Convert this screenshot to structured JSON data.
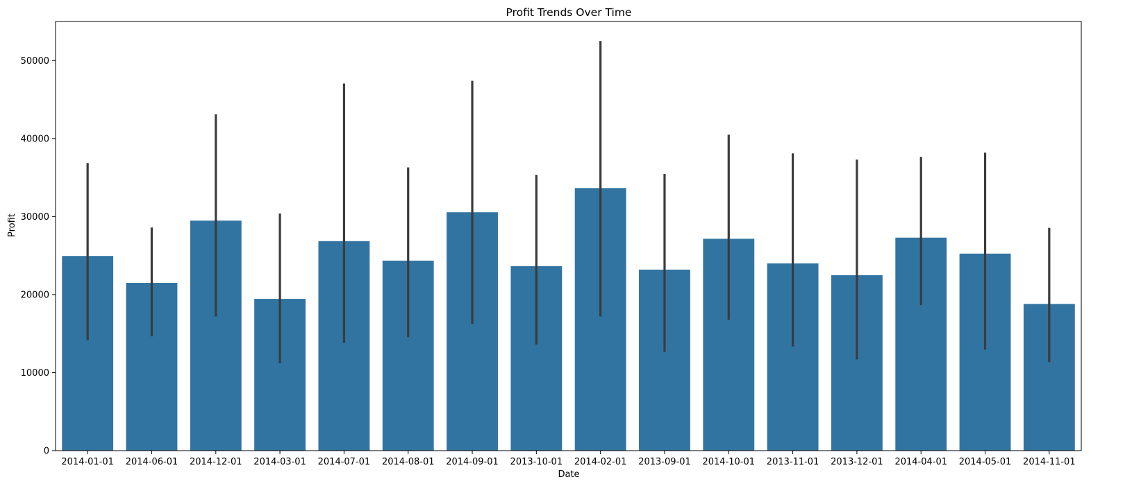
{
  "chart_data": {
    "type": "bar",
    "title": "Profit Trends Over Time",
    "xlabel": "Date",
    "ylabel": "Profit",
    "categories": [
      "2014-01-01",
      "2014-06-01",
      "2014-12-01",
      "2014-03-01",
      "2014-07-01",
      "2014-08-01",
      "2014-09-01",
      "2013-10-01",
      "2014-02-01",
      "2013-09-01",
      "2014-10-01",
      "2013-11-01",
      "2013-12-01",
      "2014-04-01",
      "2014-05-01",
      "2014-11-01"
    ],
    "values": [
      24950,
      21500,
      29480,
      19450,
      26850,
      24350,
      30550,
      23650,
      33650,
      23200,
      27150,
      24000,
      22480,
      27300,
      25250,
      18800
    ],
    "error_low": [
      14150,
      14650,
      17200,
      11200,
      13800,
      14550,
      16250,
      13600,
      17200,
      12650,
      16750,
      13350,
      11700,
      18650,
      12950,
      11350
    ],
    "error_high": [
      36850,
      28600,
      43100,
      30400,
      47050,
      36300,
      47400,
      35350,
      52500,
      35450,
      40500,
      38100,
      37300,
      37650,
      38200,
      28550
    ],
    "ylim": [
      0,
      55000
    ],
    "yticks": [
      0,
      10000,
      20000,
      30000,
      40000,
      50000
    ],
    "grid": false,
    "colors": {
      "bar": "#3274a1",
      "error": "#3b3b3b",
      "axis": "#000000"
    }
  }
}
